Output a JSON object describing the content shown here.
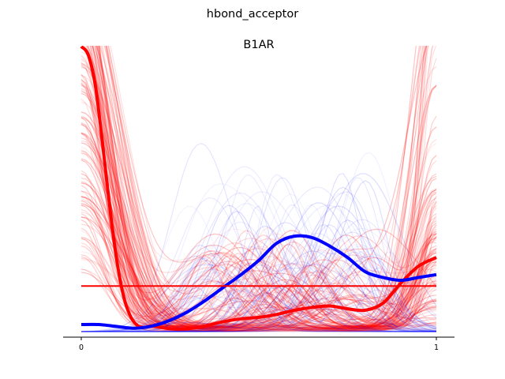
{
  "figure": {
    "suptitle": "hbond_acceptor"
  },
  "chart_data": {
    "type": "line",
    "title": "B1AR",
    "xlabel": "",
    "ylabel": "",
    "xlim": [
      0,
      1
    ],
    "ylim": [
      0,
      1
    ],
    "xticks": [
      "0",
      "1"
    ],
    "grid": false,
    "legend": "none",
    "colors": {
      "red": "#ff0000",
      "blue": "#0000ff",
      "axis": "#000000"
    },
    "series": [
      {
        "color": "#ff0000",
        "style": "thick",
        "x": [
          0,
          0.02,
          0.04,
          0.06,
          0.08,
          0.1,
          0.12,
          0.14,
          0.16,
          0.18,
          0.2,
          0.25,
          0.3,
          0.35,
          0.4,
          0.45,
          0.5,
          0.55,
          0.6,
          0.65,
          0.7,
          0.75,
          0.8,
          0.85,
          0.9,
          0.95,
          1.0
        ],
        "y": [
          1.0,
          0.97,
          0.86,
          0.66,
          0.44,
          0.25,
          0.12,
          0.05,
          0.02,
          0.015,
          0.02,
          0.01,
          0.01,
          0.02,
          0.035,
          0.045,
          0.05,
          0.06,
          0.075,
          0.085,
          0.09,
          0.08,
          0.075,
          0.1,
          0.17,
          0.23,
          0.26
        ]
      },
      {
        "color": "#0000ff",
        "style": "thick",
        "x": [
          0,
          0.05,
          0.1,
          0.15,
          0.2,
          0.25,
          0.3,
          0.35,
          0.4,
          0.45,
          0.5,
          0.55,
          0.6,
          0.65,
          0.7,
          0.75,
          0.8,
          0.85,
          0.9,
          0.95,
          1.0
        ],
        "y": [
          0.025,
          0.025,
          0.018,
          0.012,
          0.02,
          0.04,
          0.07,
          0.11,
          0.155,
          0.2,
          0.25,
          0.31,
          0.335,
          0.33,
          0.3,
          0.26,
          0.21,
          0.19,
          0.18,
          0.19,
          0.2
        ]
      },
      {
        "color": "#ff0000",
        "style": "flat-line",
        "x": [
          0,
          1
        ],
        "y": [
          0.16,
          0.16
        ]
      }
    ],
    "background_traces": {
      "red_count": 140,
      "blue_count": 70,
      "note_style": "faint thin overlapping curves"
    }
  }
}
